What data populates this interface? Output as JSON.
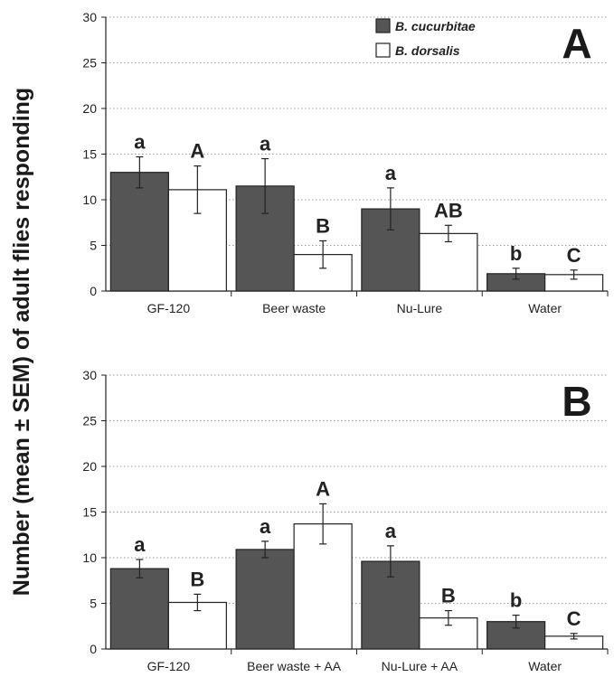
{
  "y_axis_label": "Number (mean ± SEM) of adult flies responding",
  "colors": {
    "cucurbitae": "#555555",
    "dorsalis": "#ffffff",
    "stroke": "#222222",
    "grid": "#9a9a9a"
  },
  "legend": [
    {
      "name": "B. cucurbitae",
      "color": "#555555"
    },
    {
      "name": "B. dorsalis",
      "color": "#ffffff"
    }
  ],
  "chart_data": [
    {
      "type": "bar",
      "panel": "A",
      "categories": [
        "GF-120",
        "Beer waste",
        "Nu-Lure",
        "Water"
      ],
      "ylim": [
        0,
        30
      ],
      "yticks": [
        "0",
        "5",
        "10",
        "15",
        "20",
        "25",
        "30"
      ],
      "grid": "horizontal dotted",
      "legend_position": "top-center",
      "series": [
        {
          "name": "B. cucurbitae",
          "values": [
            13,
            11.5,
            9,
            1.9
          ],
          "errors": [
            1.7,
            3.0,
            2.3,
            0.6
          ],
          "letters": [
            "a",
            "a",
            "a",
            "b"
          ]
        },
        {
          "name": "B. dorsalis",
          "values": [
            11.1,
            4.0,
            6.3,
            1.8
          ],
          "errors": [
            2.6,
            1.5,
            0.9,
            0.5
          ],
          "letters": [
            "A",
            "B",
            "AB",
            "C"
          ]
        }
      ]
    },
    {
      "type": "bar",
      "panel": "B",
      "categories": [
        "GF-120",
        "Beer waste + AA",
        "Nu-Lure + AA",
        "Water"
      ],
      "ylim": [
        0,
        30
      ],
      "yticks": [
        "0",
        "5",
        "10",
        "15",
        "20",
        "25",
        "30"
      ],
      "grid": "horizontal dotted",
      "series": [
        {
          "name": "B. cucurbitae",
          "values": [
            8.8,
            10.9,
            9.6,
            3.0
          ],
          "errors": [
            1.0,
            0.9,
            1.7,
            0.7
          ],
          "letters": [
            "a",
            "a",
            "a",
            "b"
          ]
        },
        {
          "name": "B. dorsalis",
          "values": [
            5.1,
            13.7,
            3.4,
            1.4
          ],
          "errors": [
            0.9,
            2.2,
            0.8,
            0.3
          ],
          "letters": [
            "B",
            "A",
            "B",
            "C"
          ]
        }
      ]
    }
  ]
}
